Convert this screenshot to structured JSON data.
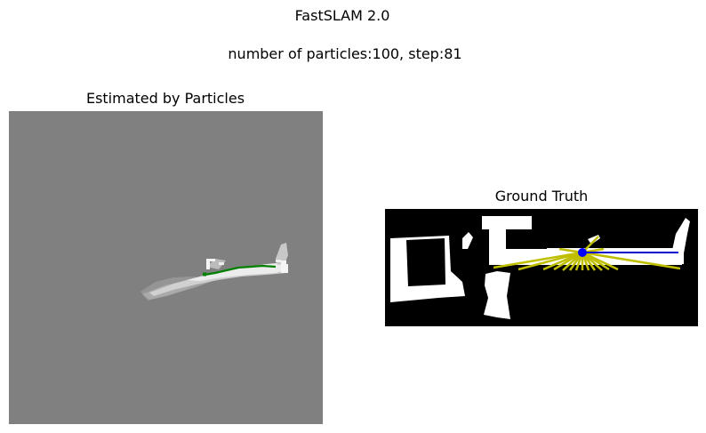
{
  "figure": {
    "title": "FastSLAM 2.0",
    "subtitle": "number of particles:100, step:81"
  },
  "left_panel": {
    "title": "Estimated by Particles",
    "colors": {
      "background": "#808080",
      "estimated_map": "#e8e8e8",
      "estimated_path": "#008000"
    }
  },
  "right_panel": {
    "title": "Ground Truth",
    "colors": {
      "background": "#000000",
      "free_space": "#ffffff",
      "laser_rays": "#bfbf00",
      "robot": "#0000ff",
      "true_path": "#0000cc"
    }
  }
}
